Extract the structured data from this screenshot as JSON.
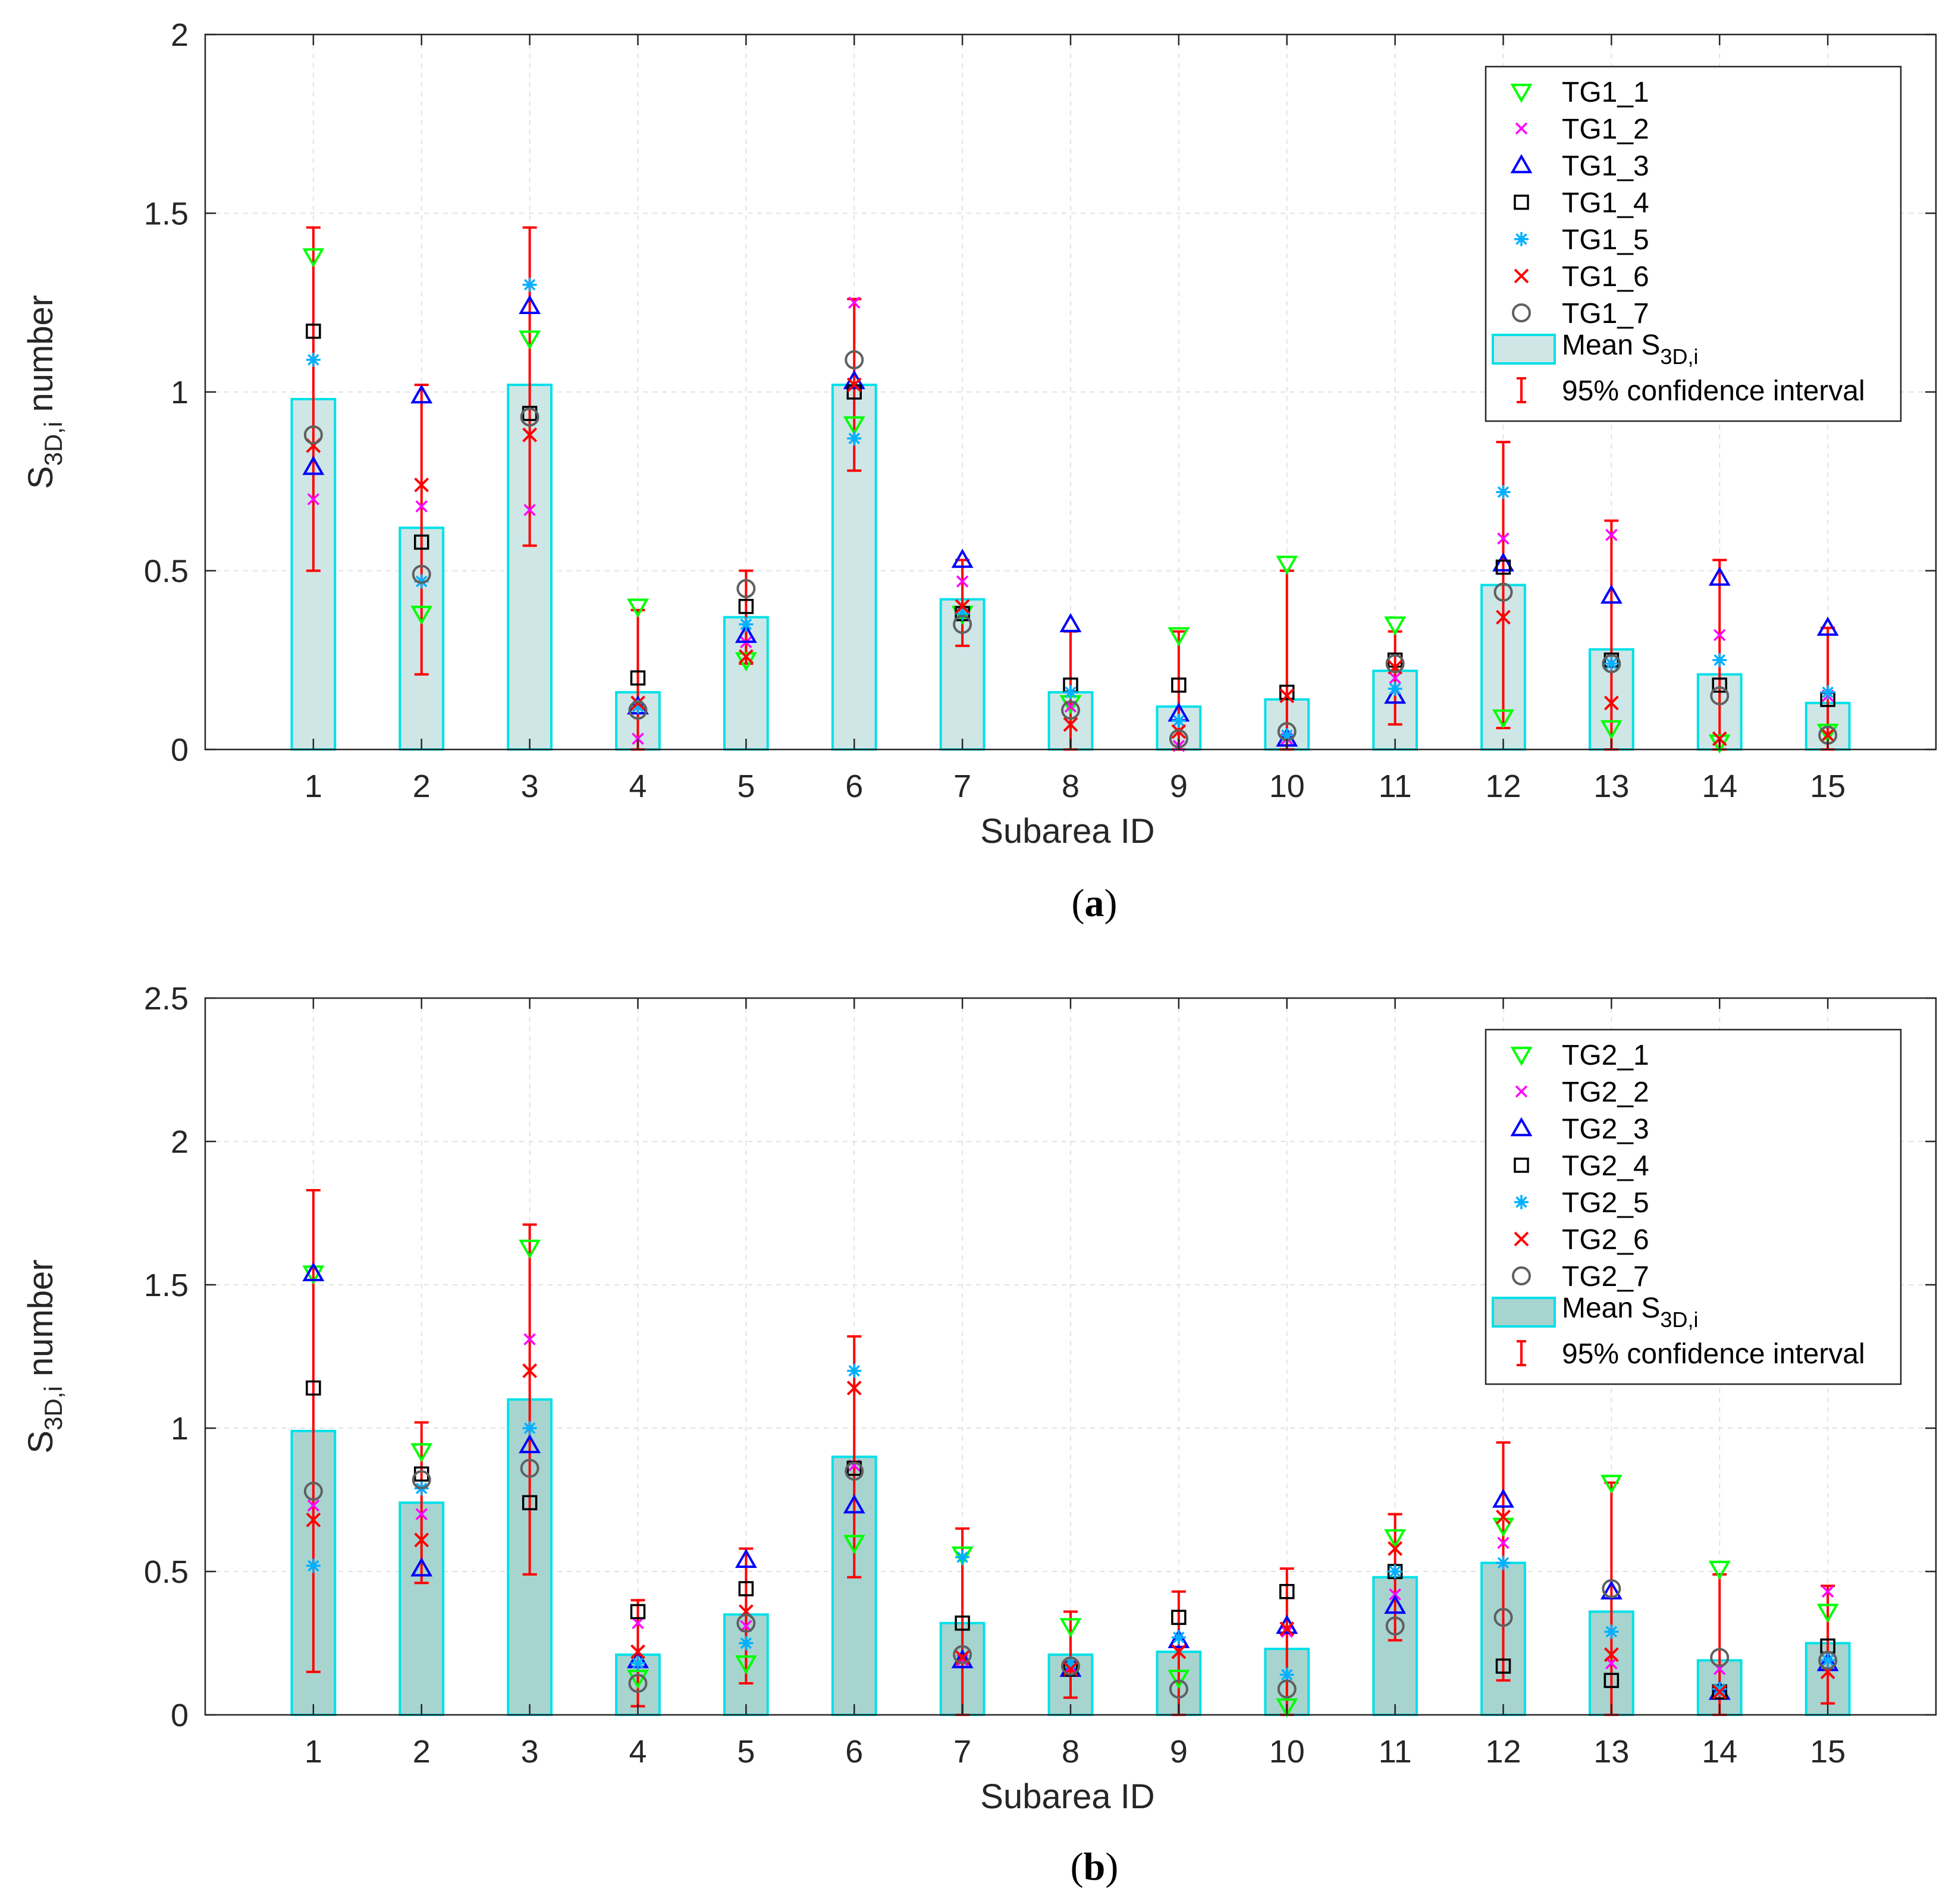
{
  "chart_data": [
    {
      "type": "bar",
      "panel_label": "a",
      "xlabel": "Subarea ID",
      "ylabel_main": "S",
      "ylabel_sub": "3D,i",
      "ylabel_tail": " number",
      "ylim": [
        0,
        2
      ],
      "yticks": [
        "0",
        "0.5",
        "1",
        "1.5",
        "2"
      ],
      "ytick_values": [
        0,
        0.5,
        1,
        1.5,
        2
      ],
      "categories": [
        "1",
        "2",
        "3",
        "4",
        "5",
        "6",
        "7",
        "8",
        "9",
        "10",
        "11",
        "12",
        "13",
        "14",
        "15"
      ],
      "grid": true,
      "legend_position": "top-right",
      "bar_color": "#cfe6e6",
      "bar_edge": "#00e0e8",
      "mean": {
        "name_main": "Mean S",
        "name_sub": "3D,i",
        "values": [
          0.98,
          0.62,
          1.02,
          0.16,
          0.37,
          1.02,
          0.42,
          0.16,
          0.12,
          0.14,
          0.22,
          0.46,
          0.28,
          0.21,
          0.13
        ]
      },
      "ci": {
        "name": "95% confidence interval",
        "color": "#ff0000",
        "low": [
          0.5,
          0.21,
          0.57,
          0.0,
          0.24,
          0.78,
          0.29,
          0.0,
          0.0,
          0.0,
          0.07,
          0.06,
          0.0,
          0.0,
          0.0
        ],
        "high": [
          1.46,
          1.02,
          1.46,
          0.39,
          0.5,
          1.26,
          0.53,
          0.33,
          0.33,
          0.5,
          0.33,
          0.86,
          0.64,
          0.53,
          0.34
        ]
      },
      "series": [
        {
          "name": "TG1_1",
          "marker": "triangle-down",
          "color": "#00ff00",
          "values": [
            1.38,
            0.38,
            1.15,
            0.4,
            0.25,
            0.91,
            0.38,
            0.13,
            0.32,
            0.52,
            0.35,
            0.09,
            0.06,
            0.02,
            0.05
          ]
        },
        {
          "name": "TG1_2",
          "marker": "plus-x",
          "color": "#ff00ff",
          "values": [
            0.7,
            0.68,
            0.67,
            0.03,
            0.3,
            1.25,
            0.47,
            0.12,
            0.01,
            0.03,
            0.2,
            0.59,
            0.6,
            0.32,
            0.15
          ]
        },
        {
          "name": "TG1_3",
          "marker": "triangle-up",
          "color": "#0000ff",
          "values": [
            0.79,
            0.99,
            1.24,
            0.12,
            0.32,
            1.03,
            0.53,
            0.35,
            0.1,
            0.03,
            0.15,
            0.52,
            0.43,
            0.48,
            0.34
          ]
        },
        {
          "name": "TG1_4",
          "marker": "square",
          "color": "#000000",
          "values": [
            1.17,
            0.58,
            0.94,
            0.2,
            0.4,
            1.0,
            0.38,
            0.18,
            0.18,
            0.16,
            0.25,
            0.51,
            0.25,
            0.18,
            0.14
          ]
        },
        {
          "name": "TG1_5",
          "marker": "asterisk",
          "color": "#00b0ff",
          "values": [
            1.09,
            0.47,
            1.3,
            0.12,
            0.35,
            0.87,
            0.38,
            0.16,
            0.08,
            0.04,
            0.17,
            0.72,
            0.24,
            0.25,
            0.16
          ]
        },
        {
          "name": "TG1_6",
          "marker": "cross",
          "color": "#ff0000",
          "values": [
            0.85,
            0.74,
            0.88,
            0.13,
            0.26,
            1.02,
            0.4,
            0.07,
            0.05,
            0.15,
            0.23,
            0.37,
            0.13,
            0.03,
            0.04
          ]
        },
        {
          "name": "TG1_7",
          "marker": "circle",
          "color": "#606060",
          "values": [
            0.88,
            0.49,
            0.93,
            0.11,
            0.45,
            1.09,
            0.35,
            0.11,
            0.03,
            0.05,
            0.24,
            0.44,
            0.24,
            0.15,
            0.04
          ]
        }
      ]
    },
    {
      "type": "bar",
      "panel_label": "b",
      "xlabel": "Subarea ID",
      "ylabel_main": "S",
      "ylabel_sub": "3D,i",
      "ylabel_tail": " number",
      "ylim": [
        0,
        2.5
      ],
      "yticks": [
        "0",
        "0.5",
        "1",
        "1.5",
        "2",
        "2.5"
      ],
      "ytick_values": [
        0,
        0.5,
        1,
        1.5,
        2,
        2.5
      ],
      "categories": [
        "1",
        "2",
        "3",
        "4",
        "5",
        "6",
        "7",
        "8",
        "9",
        "10",
        "11",
        "12",
        "13",
        "14",
        "15"
      ],
      "grid": true,
      "legend_position": "top-right",
      "bar_color": "#a8d4d0",
      "bar_edge": "#00e0e8",
      "mean": {
        "name_main": "Mean S",
        "name_sub": "3D,i",
        "values": [
          0.99,
          0.74,
          1.1,
          0.21,
          0.35,
          0.9,
          0.32,
          0.21,
          0.22,
          0.23,
          0.48,
          0.53,
          0.36,
          0.19,
          0.25
        ]
      },
      "ci": {
        "name": "95% confidence interval",
        "color": "#ff0000",
        "low": [
          0.15,
          0.46,
          0.49,
          0.03,
          0.11,
          0.48,
          0.0,
          0.06,
          0.0,
          0.0,
          0.26,
          0.12,
          0.0,
          0.0,
          0.04
        ]
      },
      "ci_high_b": [
        1.83,
        1.02,
        1.71,
        0.4,
        0.58,
        1.32,
        0.65,
        0.36,
        0.43,
        0.51,
        0.7,
        0.95,
        0.81,
        0.49,
        0.45
      ],
      "series": [
        {
          "name": "TG2_1",
          "marker": "triangle-down",
          "color": "#00ff00",
          "values": [
            1.54,
            0.92,
            1.63,
            0.13,
            0.18,
            0.6,
            0.56,
            0.31,
            0.13,
            0.03,
            0.62,
            0.66,
            0.81,
            0.51,
            0.36
          ]
        },
        {
          "name": "TG2_2",
          "marker": "plus-x",
          "color": "#ff00ff",
          "values": [
            0.73,
            0.7,
            1.31,
            0.32,
            0.31,
            0.87,
            0.19,
            0.17,
            0.22,
            0.29,
            0.42,
            0.6,
            0.18,
            0.16,
            0.43
          ]
        },
        {
          "name": "TG2_3",
          "marker": "triangle-up",
          "color": "#0000ff",
          "values": [
            1.54,
            0.51,
            0.94,
            0.19,
            0.54,
            0.73,
            0.19,
            0.16,
            0.26,
            0.31,
            0.38,
            0.75,
            0.43,
            0.08,
            0.18
          ]
        },
        {
          "name": "TG2_4",
          "marker": "square",
          "color": "#000000",
          "values": [
            1.14,
            0.84,
            0.74,
            0.36,
            0.44,
            0.86,
            0.32,
            0.16,
            0.34,
            0.43,
            0.5,
            0.17,
            0.12,
            0.08,
            0.24
          ]
        },
        {
          "name": "TG2_5",
          "marker": "asterisk",
          "color": "#00b0ff",
          "values": [
            0.52,
            0.79,
            1.0,
            0.18,
            0.25,
            1.2,
            0.55,
            0.18,
            0.27,
            0.14,
            0.5,
            0.53,
            0.29,
            0.09,
            0.19
          ]
        },
        {
          "name": "TG2_6",
          "marker": "cross",
          "color": "#ff0000",
          "values": [
            0.68,
            0.61,
            1.2,
            0.22,
            0.36,
            1.14,
            0.2,
            0.16,
            0.22,
            0.3,
            0.58,
            0.69,
            0.21,
            0.08,
            0.15
          ]
        },
        {
          "name": "TG2_7",
          "marker": "circle",
          "color": "#606060",
          "values": [
            0.78,
            0.82,
            0.86,
            0.11,
            0.32,
            0.85,
            0.21,
            0.17,
            0.09,
            0.09,
            0.31,
            0.34,
            0.44,
            0.2,
            0.19
          ]
        }
      ]
    }
  ]
}
